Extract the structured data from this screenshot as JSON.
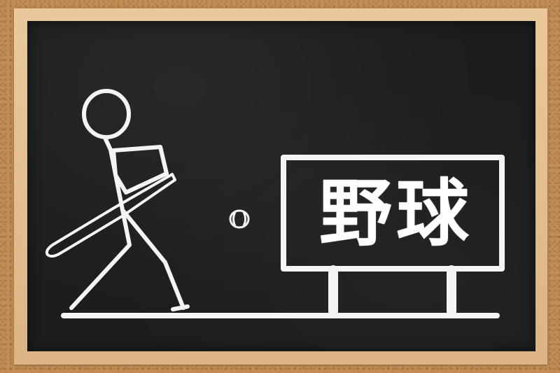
{
  "sign": {
    "text": "野球"
  },
  "colors": {
    "chalk": "#f4f4f2",
    "board": "#1b1d1f",
    "frame": "#dcb485",
    "cork": "#c28d55"
  }
}
